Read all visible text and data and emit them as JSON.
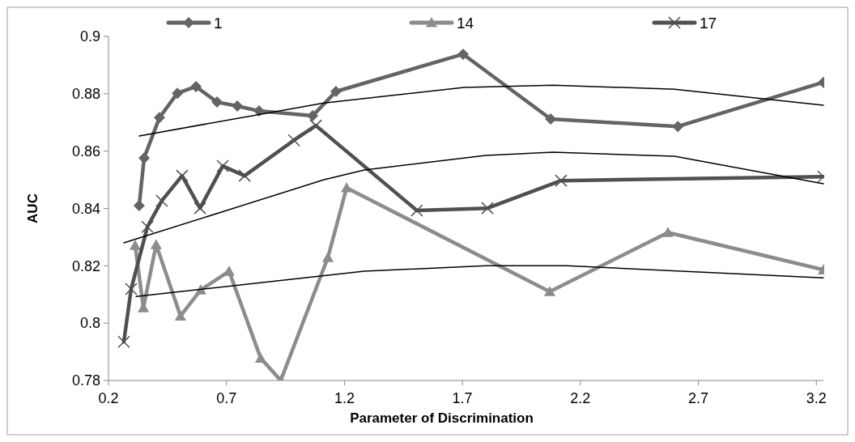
{
  "chart_data": {
    "type": "line",
    "xlabel": "Parameter of Discrimination",
    "ylabel": "AUC",
    "xlim": [
      0.2,
      3.23
    ],
    "xticks": [
      0.2,
      0.7,
      1.2,
      1.7,
      2.2,
      2.7,
      3.2
    ],
    "ylim": [
      0.78,
      0.9
    ],
    "yticks": [
      {
        "value": 0.78,
        "label": "0.78"
      },
      {
        "value": 0.8,
        "label": "0.8"
      },
      {
        "value": 0.82,
        "label": "0.82"
      },
      {
        "value": 0.84,
        "label": "0.84"
      },
      {
        "value": 0.86,
        "label": "0.86"
      },
      {
        "value": 0.88,
        "label": "0.88"
      },
      {
        "value": 0.9,
        "label": "0.9"
      }
    ],
    "grid": false,
    "legend": "top",
    "line_style": "solid",
    "series": [
      {
        "name": "1",
        "color": "#646464",
        "marker": "diamond",
        "x": [
          0.33,
          0.351,
          0.416,
          0.492,
          0.571,
          0.66,
          0.746,
          0.838,
          1.065,
          1.164,
          1.703,
          2.074,
          2.613,
          3.23
        ],
        "values": [
          0.841,
          0.8576,
          0.8717,
          0.8802,
          0.8825,
          0.8771,
          0.8757,
          0.874,
          0.8723,
          0.8808,
          0.8938,
          0.8712,
          0.8686,
          0.884
        ]
      },
      {
        "name": "14",
        "color": "#8c8c8c",
        "marker": "triangle",
        "x": [
          0.313,
          0.348,
          0.402,
          0.505,
          0.591,
          0.711,
          0.845,
          0.93,
          1.13,
          1.209,
          2.07,
          2.571,
          3.23
        ],
        "values": [
          0.8271,
          0.8054,
          0.8274,
          0.8025,
          0.8116,
          0.8181,
          0.7878,
          0.78,
          0.8229,
          0.8472,
          0.811,
          0.8316,
          0.8186
        ]
      },
      {
        "name": "17",
        "color": "#505050",
        "marker": "cross",
        "x": [
          0.265,
          0.296,
          0.365,
          0.426,
          0.512,
          0.588,
          0.684,
          0.777,
          0.986,
          1.079,
          1.507,
          1.806,
          2.118,
          3.23
        ],
        "values": [
          0.7935,
          0.8119,
          0.8336,
          0.8427,
          0.8514,
          0.8401,
          0.8548,
          0.8514,
          0.8638,
          0.8689,
          0.8393,
          0.8401,
          0.8497,
          0.8511
        ]
      },
      {
        "type": "line",
        "color": "#000000",
        "marker": "none",
        "x": [
          0.33,
          1.113,
          1.707,
          2.084,
          2.599,
          3.23
        ],
        "values": [
          0.8653,
          0.8768,
          0.8822,
          0.883,
          0.8816,
          0.876
        ]
      },
      {
        "type": "line",
        "color": "#000000",
        "marker": "none",
        "x": [
          0.265,
          1.113,
          1.284,
          1.799,
          2.084,
          2.599,
          3.23
        ],
        "values": [
          0.828,
          0.85,
          0.8534,
          0.8585,
          0.8596,
          0.8582,
          0.8486
        ]
      },
      {
        "type": "line",
        "color": "#000000",
        "marker": "none",
        "x": [
          0.317,
          1.284,
          1.799,
          2.142,
          3.23
        ],
        "values": [
          0.8093,
          0.8181,
          0.82,
          0.82,
          0.8158
        ]
      }
    ]
  }
}
